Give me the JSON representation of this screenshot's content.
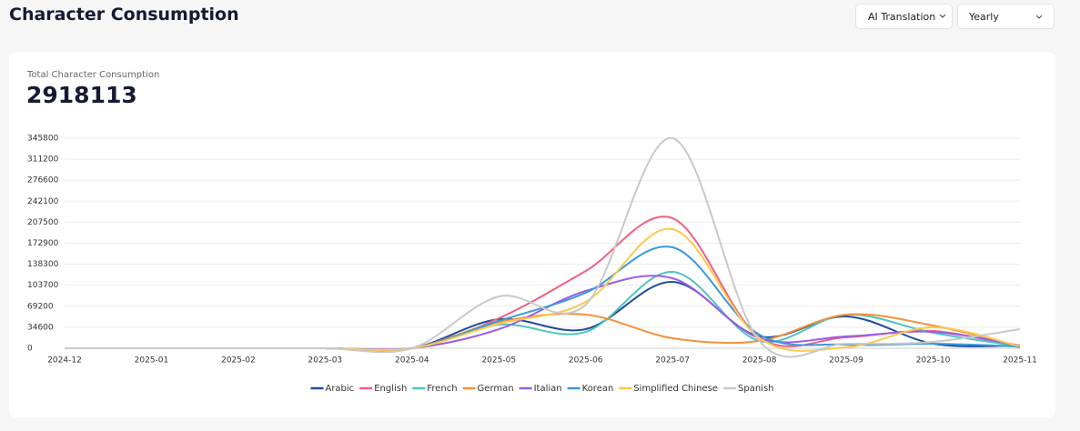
{
  "header": {
    "title": "Character Consumption",
    "filters": [
      "AI Translation",
      "Yearly"
    ]
  },
  "card": {
    "label": "Total Character Consumption",
    "total": "2918113"
  },
  "chart_data": {
    "type": "line",
    "smooth": true,
    "grid": true,
    "categories": [
      "2024-12",
      "2025-01",
      "2025-02",
      "2025-03",
      "2025-04",
      "2025-05",
      "2025-06",
      "2025-07",
      "2025-08",
      "2025-09",
      "2025-10",
      "2025-11"
    ],
    "ylim": [
      0,
      345800
    ],
    "yticks": [
      0,
      34600,
      69200,
      103700,
      138300,
      172900,
      207500,
      242100,
      276600,
      311200,
      345800
    ],
    "legend": "bottom",
    "series": [
      {
        "name": "Arabic",
        "color": "#1f4e9c",
        "values": [
          0,
          0,
          0,
          0,
          0,
          47900,
          31400,
          109300,
          19500,
          52400,
          7500,
          4500
        ]
      },
      {
        "name": "English",
        "color": "#f0607f",
        "values": [
          0,
          0,
          0,
          0,
          0,
          49400,
          127200,
          214000,
          18000,
          18000,
          28400,
          1500
        ]
      },
      {
        "name": "French",
        "color": "#4fc3c0",
        "values": [
          0,
          0,
          0,
          0,
          0,
          38900,
          26900,
          125700,
          12000,
          55400,
          25400,
          3000
        ]
      },
      {
        "name": "German",
        "color": "#f4923a",
        "values": [
          0,
          0,
          0,
          0,
          0,
          43400,
          55400,
          16500,
          12000,
          55400,
          37400,
          3000
        ]
      },
      {
        "name": "Italian",
        "color": "#9b5de5",
        "values": [
          0,
          0,
          0,
          0,
          0,
          31400,
          94300,
          115300,
          16500,
          19500,
          27000,
          4500
        ]
      },
      {
        "name": "Korean",
        "color": "#3a9ad9",
        "values": [
          0,
          0,
          0,
          0,
          0,
          44900,
          91300,
          166200,
          22500,
          6000,
          7500,
          3000
        ]
      },
      {
        "name": "Simplified Chinese",
        "color": "#fdc94e",
        "values": [
          0,
          0,
          0,
          0,
          0,
          40400,
          76300,
          196100,
          16500,
          1500,
          34400,
          3000
        ]
      },
      {
        "name": "Spanish",
        "color": "#c9c9c9",
        "values": [
          0,
          0,
          0,
          0,
          0,
          85300,
          71900,
          345800,
          12000,
          7500,
          10500,
          31400
        ]
      }
    ]
  }
}
